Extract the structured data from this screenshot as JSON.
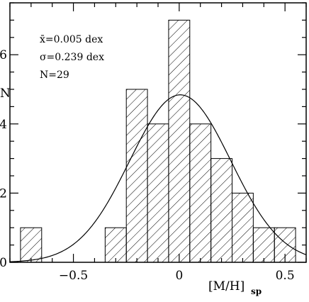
{
  "chart_data": {
    "type": "histogram",
    "title": "",
    "xlabel": "[M/H]",
    "xlabel_sub": "sp",
    "ylabel": "N",
    "xlim": [
      -0.8,
      0.6
    ],
    "ylim": [
      0,
      7.5
    ],
    "xticks": [
      -0.5,
      0,
      0.5
    ],
    "xtick_labels": [
      "−0.5",
      "0",
      "0.5"
    ],
    "yticks": [
      0,
      2,
      4,
      6
    ],
    "ytick_labels": [
      "0",
      "2",
      "4",
      "6"
    ],
    "bin_width": 0.1,
    "bins": [
      {
        "left": -0.75,
        "count": 1
      },
      {
        "left": -0.65,
        "count": 0
      },
      {
        "left": -0.55,
        "count": 0
      },
      {
        "left": -0.45,
        "count": 0
      },
      {
        "left": -0.35,
        "count": 1
      },
      {
        "left": -0.25,
        "count": 5
      },
      {
        "left": -0.15,
        "count": 4
      },
      {
        "left": -0.05,
        "count": 7
      },
      {
        "left": 0.05,
        "count": 4
      },
      {
        "left": 0.15,
        "count": 3
      },
      {
        "left": 0.25,
        "count": 2
      },
      {
        "left": 0.35,
        "count": 1
      },
      {
        "left": 0.45,
        "count": 1
      }
    ],
    "gaussian_fit": {
      "mean": 0.005,
      "sigma": 0.239,
      "N": 29
    },
    "stats_text": {
      "mean_label": "x̄=0.005 dex",
      "sigma_label": "σ=0.239 dex",
      "n_label": "N=29"
    },
    "grid": false,
    "legend": "none"
  }
}
